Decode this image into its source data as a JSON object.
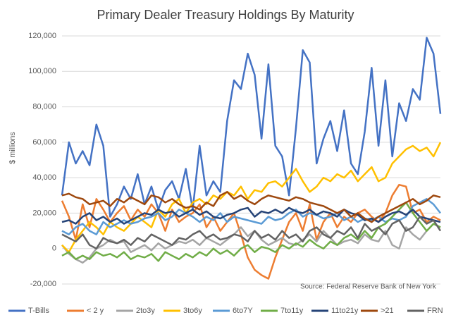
{
  "chart_data": {
    "type": "line",
    "title": "Primary Dealer Treasury Holdings By Maturity",
    "y_label": "$ millions",
    "annotation": "Source: Federal Reserve Bank of New York",
    "ylim": [
      -20000,
      120000
    ],
    "yticks": [
      {
        "value": -20000,
        "label": "-20,000"
      },
      0,
      {
        "value": 20000,
        "label": "20,000"
      },
      {
        "value": 40000,
        "label": "40,000"
      },
      {
        "value": 60000,
        "label": "60,000"
      },
      {
        "value": 80000,
        "label": "80,000"
      },
      {
        "value": 100000,
        "label": "100,000"
      },
      {
        "value": 120000,
        "label": "120,000"
      }
    ],
    "grid": true,
    "legend": "bottom",
    "series": [
      {
        "name": "T-Bills",
        "color": "#4472c4",
        "values": [
          30000,
          60000,
          48000,
          55000,
          47000,
          70000,
          58000,
          18000,
          25000,
          35000,
          28000,
          42000,
          25000,
          35000,
          22000,
          33000,
          38000,
          28000,
          45000,
          22000,
          58000,
          30000,
          38000,
          32000,
          72000,
          95000,
          90000,
          110000,
          98000,
          62000,
          104000,
          58000,
          52000,
          30000,
          68000,
          112000,
          105000,
          48000,
          62000,
          72000,
          55000,
          78000,
          48000,
          42000,
          66000,
          102000,
          58000,
          95000,
          52000,
          82000,
          72000,
          90000,
          84000,
          119000,
          110000,
          76000
        ]
      },
      {
        "name": "< 2 y",
        "color": "#ed7d31",
        "values": [
          27000,
          18000,
          5000,
          25000,
          12000,
          28000,
          22000,
          15000,
          20000,
          24000,
          16000,
          22000,
          18000,
          25000,
          20000,
          10000,
          22000,
          15000,
          18000,
          20000,
          25000,
          12000,
          18000,
          10000,
          15000,
          20000,
          8000,
          -5000,
          -12000,
          -15000,
          -17000,
          -5000,
          5000,
          15000,
          20000,
          10000,
          25000,
          5000,
          15000,
          20000,
          12000,
          18000,
          15000,
          20000,
          22000,
          18000,
          15000,
          20000,
          30000,
          36000,
          35000,
          20000,
          22000,
          15000,
          18000,
          16000
        ]
      },
      {
        "name": "2to3y",
        "color": "#a5a5a5",
        "values": [
          2000,
          -3000,
          -6000,
          -8000,
          -5000,
          0,
          2000,
          5000,
          3000,
          4000,
          -2000,
          0,
          2000,
          -1000,
          3000,
          0,
          2000,
          4000,
          3000,
          5000,
          2000,
          6000,
          4000,
          2000,
          5000,
          8000,
          12000,
          7000,
          10000,
          5000,
          2000,
          4000,
          6000,
          3000,
          2000,
          5000,
          8000,
          4000,
          10000,
          6000,
          2000,
          4000,
          5000,
          3000,
          8000,
          5000,
          4000,
          10000,
          2000,
          0,
          12000,
          8000,
          5000,
          10000,
          14000,
          12000
        ]
      },
      {
        "name": "3to6y",
        "color": "#ffc000",
        "values": [
          2000,
          -2000,
          5000,
          10000,
          15000,
          12000,
          8000,
          15000,
          12000,
          10000,
          14000,
          18000,
          15000,
          12000,
          22000,
          18000,
          25000,
          28000,
          20000,
          26000,
          28000,
          25000,
          30000,
          28000,
          32000,
          30000,
          35000,
          28000,
          33000,
          32000,
          37000,
          38000,
          35000,
          40000,
          45000,
          38000,
          32000,
          35000,
          40000,
          38000,
          42000,
          40000,
          44000,
          38000,
          42000,
          46000,
          38000,
          40000,
          48000,
          52000,
          56000,
          58000,
          55000,
          57000,
          52000,
          60000
        ]
      },
      {
        "name": "6to7Y",
        "color": "#5b9bd5",
        "values": [
          10000,
          8000,
          12000,
          14000,
          10000,
          8000,
          15000,
          12000,
          14000,
          16000,
          14000,
          15000,
          17000,
          18000,
          20000,
          16000,
          18000,
          22000,
          20000,
          18000,
          15000,
          18000,
          16000,
          20000,
          15000,
          18000,
          17000,
          16000,
          15000,
          14000,
          18000,
          16000,
          17000,
          20000,
          22000,
          18000,
          20000,
          19000,
          17000,
          18000,
          20000,
          16000,
          18000,
          15000,
          17000,
          16000,
          18000,
          15000,
          17000,
          16000,
          18000,
          24000,
          26000,
          28000,
          25000,
          20000
        ]
      },
      {
        "name": "7to11y",
        "color": "#70ad47",
        "values": [
          -4000,
          -2000,
          -6000,
          -4000,
          -6000,
          -2000,
          -4000,
          -3000,
          -5000,
          -2000,
          -6000,
          -4000,
          -5000,
          -3000,
          -7000,
          -2000,
          -4000,
          -6000,
          -3000,
          -5000,
          -2000,
          -4000,
          0,
          -3000,
          -1000,
          -4000,
          0,
          2000,
          -2000,
          1000,
          0,
          -2000,
          2000,
          0,
          3000,
          1000,
          5000,
          2000,
          0,
          4000,
          2000,
          6000,
          8000,
          5000,
          10000,
          6000,
          12000,
          14000,
          18000,
          22000,
          26000,
          20000,
          15000,
          10000,
          14000,
          12000
        ]
      },
      {
        "name": "11to21y",
        "color": "#264478",
        "values": [
          15000,
          16000,
          14000,
          18000,
          20000,
          16000,
          18000,
          15000,
          17000,
          14000,
          16000,
          18000,
          20000,
          19000,
          22000,
          20000,
          21000,
          18000,
          20000,
          22000,
          19000,
          21000,
          18000,
          17000,
          19000,
          20000,
          22000,
          23000,
          18000,
          21000,
          20000,
          22000,
          20000,
          23000,
          21000,
          20000,
          22000,
          19000,
          21000,
          20000,
          18000,
          22000,
          20000,
          19000,
          16000,
          17000,
          15000,
          18000,
          20000,
          21000,
          19000,
          22000,
          18000,
          17000,
          16000,
          15000
        ]
      },
      {
        "name": ">21",
        "color": "#9e480e",
        "values": [
          30000,
          31000,
          29000,
          28000,
          25000,
          26000,
          27000,
          24000,
          28000,
          26000,
          29000,
          27000,
          25000,
          30000,
          29000,
          26000,
          28000,
          25000,
          23000,
          24000,
          22000,
          26000,
          24000,
          30000,
          32000,
          28000,
          30000,
          27000,
          25000,
          28000,
          30000,
          29000,
          28000,
          27000,
          29000,
          28000,
          26000,
          25000,
          24000,
          22000,
          20000,
          22000,
          18000,
          20000,
          17000,
          15000,
          18000,
          20000,
          22000,
          24000,
          26000,
          28000,
          25000,
          27000,
          30000,
          29000
        ]
      },
      {
        "name": "FRN",
        "color": "#636363",
        "values": [
          8000,
          6000,
          4000,
          8000,
          2000,
          0,
          6000,
          4000,
          3000,
          5000,
          2000,
          6000,
          4000,
          8000,
          6000,
          4000,
          2000,
          6000,
          5000,
          8000,
          10000,
          6000,
          8000,
          5000,
          6000,
          8000,
          7000,
          4000,
          10000,
          6000,
          8000,
          5000,
          10000,
          6000,
          8000,
          4000,
          10000,
          12000,
          8000,
          6000,
          10000,
          8000,
          12000,
          6000,
          14000,
          10000,
          12000,
          8000,
          14000,
          16000,
          10000,
          12000,
          18000,
          14000,
          16000,
          10000
        ]
      }
    ]
  }
}
